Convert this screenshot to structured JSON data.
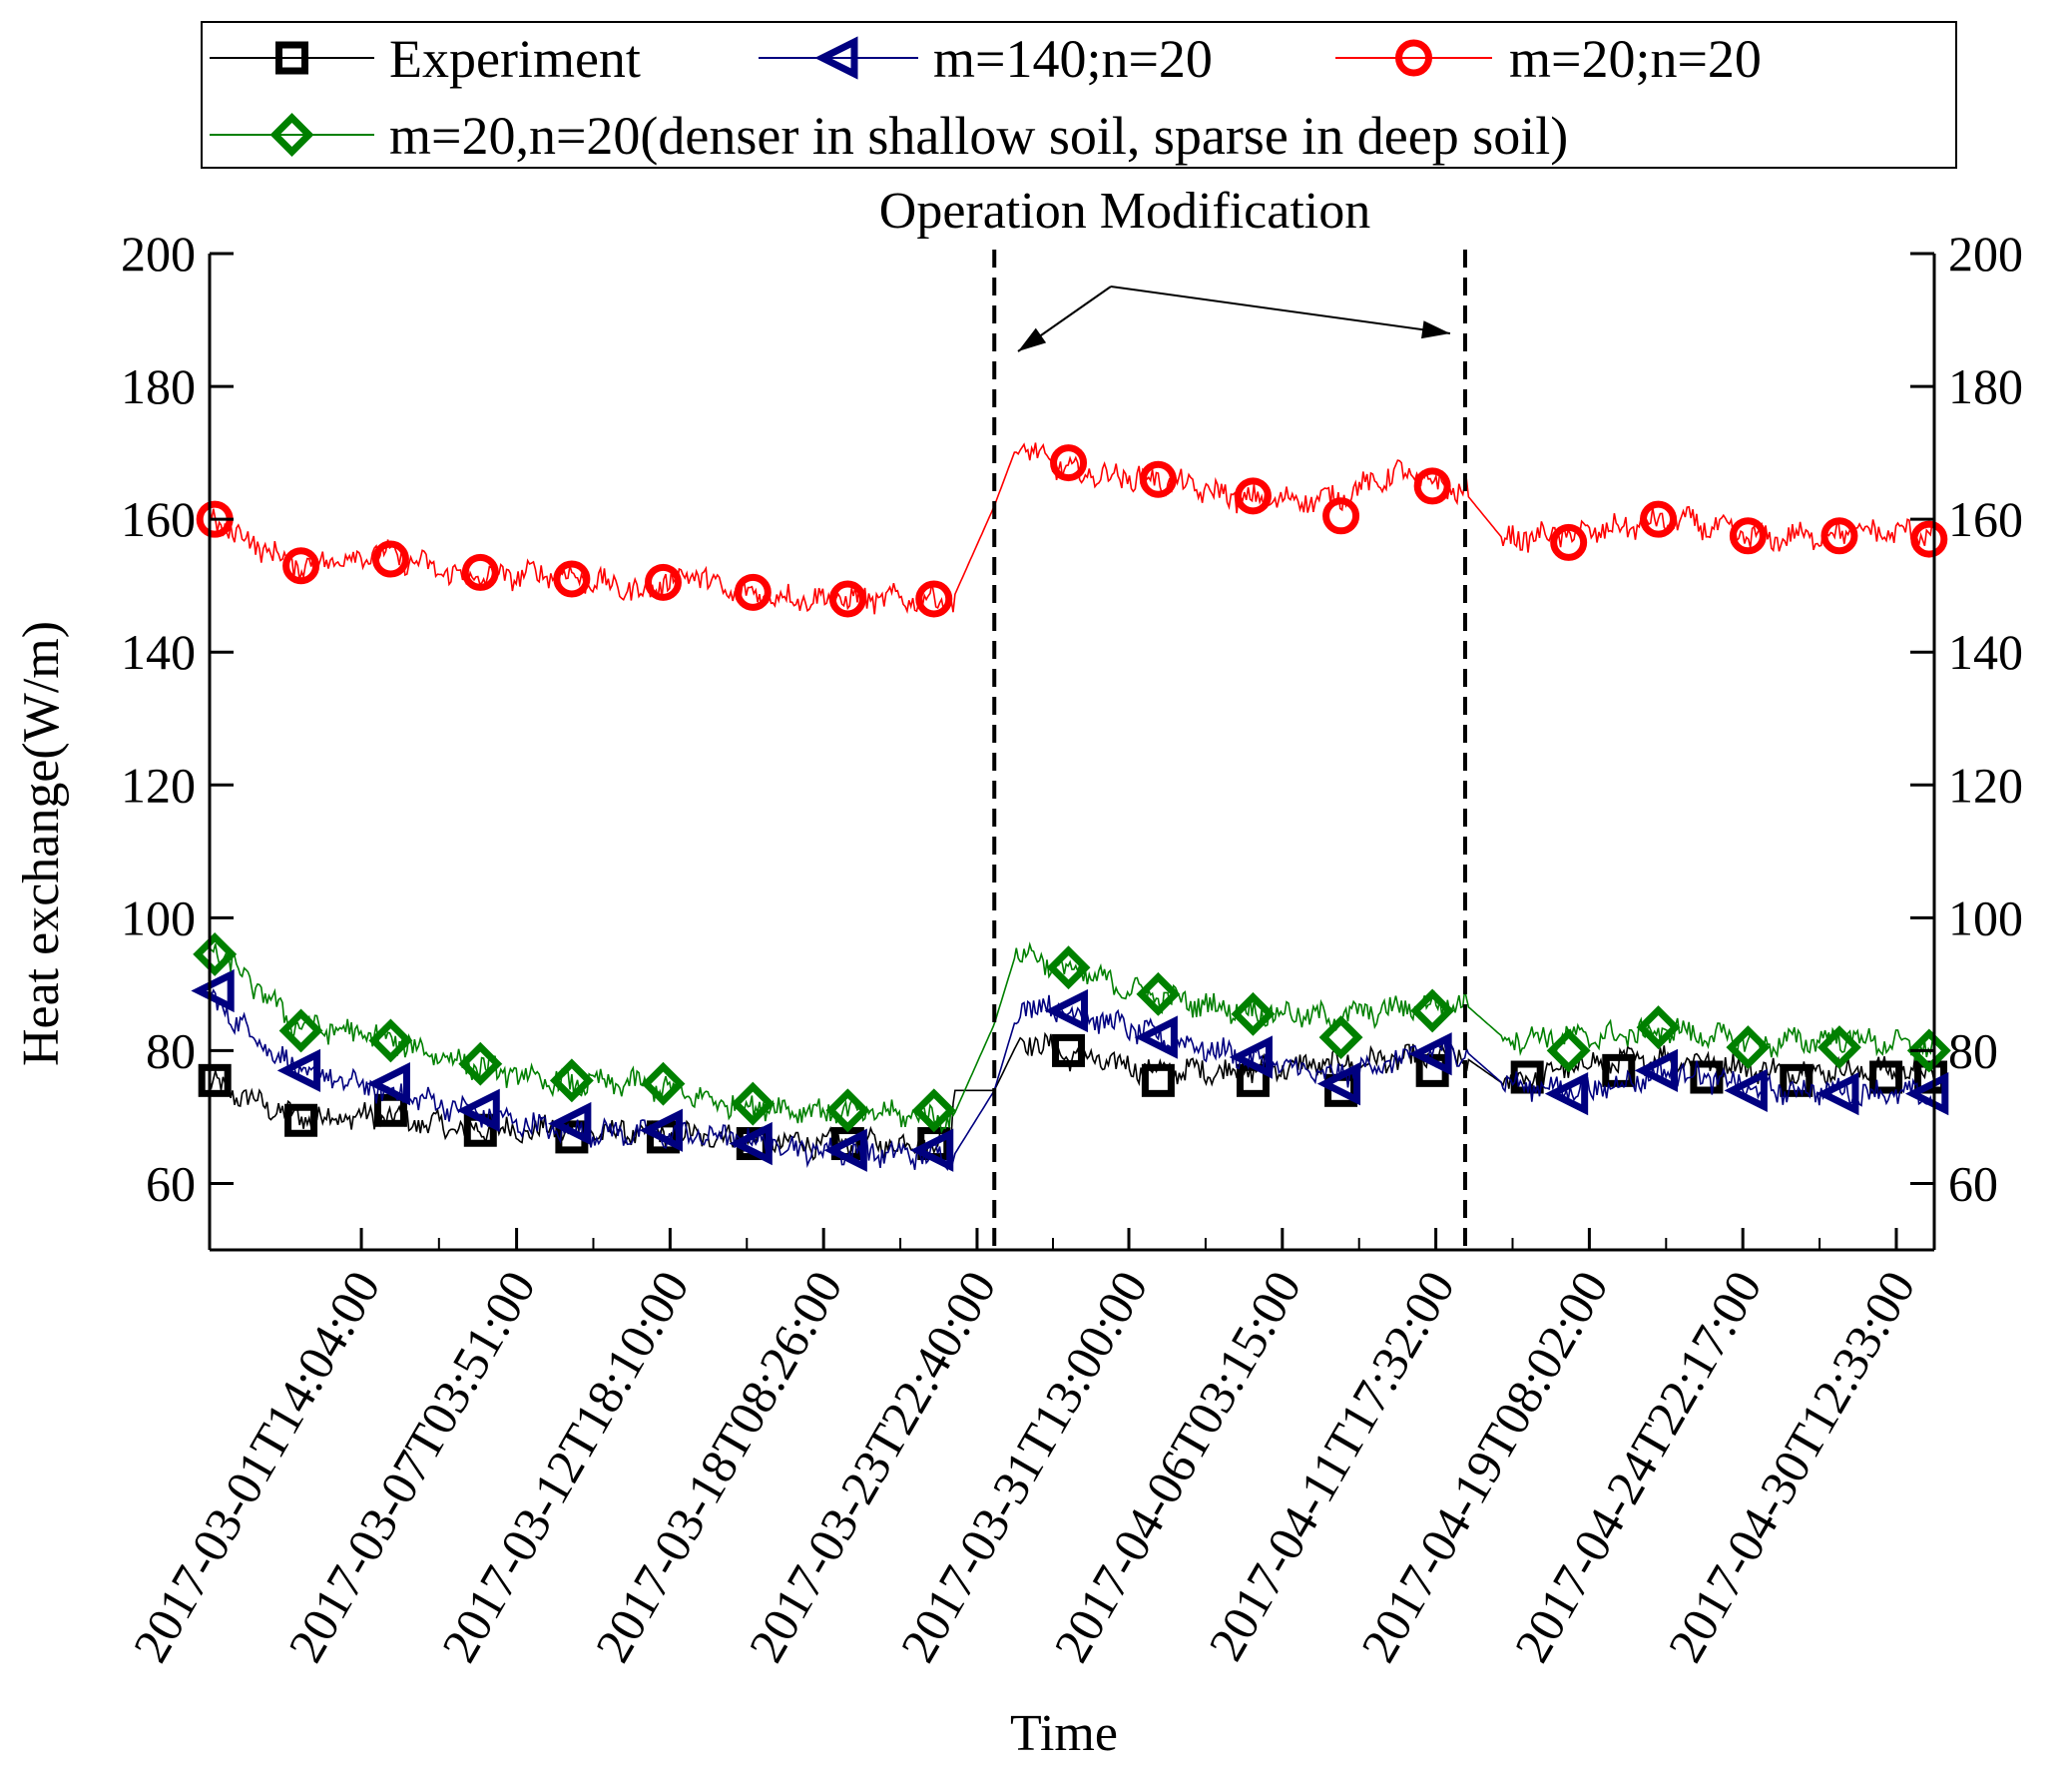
{
  "chart_data": {
    "type": "line",
    "title": "",
    "xlabel": "Time",
    "ylabel": "Heat exchange(W/m)",
    "ylim": [
      50,
      200
    ],
    "yticks": [
      60,
      80,
      100,
      120,
      140,
      160,
      180,
      200
    ],
    "xlim": [
      0,
      1
    ],
    "x_tick_labels": [
      "2017-03-01T14:04:00",
      "2017-03-07T03:51:00",
      "2017-03-12T18:10:00",
      "2017-03-18T08:26:00",
      "2017-03-23T22:40:00",
      "2017-03-31T13:00:00",
      "2017-04-06T03:15:00",
      "2017-04-11T17:32:00",
      "2017-04-19T08:02:00",
      "2017-04-24T22:17:00",
      "2017-04-30T12:33:00"
    ],
    "x_tick_positions": [
      0.088,
      0.178,
      0.267,
      0.356,
      0.445,
      0.533,
      0.622,
      0.711,
      0.8,
      0.889,
      0.978
    ],
    "annotation": {
      "text": "Operation Modification",
      "vlines": [
        0.455,
        0.728
      ]
    },
    "legend": {
      "placement": "top",
      "entries": [
        "Experiment",
        "m=140;n=20",
        "m=20;n=20",
        "m=20,n=20(denser in shallow soil, sparse in deep soil)"
      ]
    },
    "series": [
      {
        "name": "Experiment",
        "color": "#000000",
        "marker": "square",
        "knots": [
          [
            0,
            75
          ],
          [
            0.05,
            70
          ],
          [
            0.1,
            70
          ],
          [
            0.15,
            68
          ],
          [
            0.2,
            68
          ],
          [
            0.3,
            67
          ],
          [
            0.35,
            66
          ],
          [
            0.43,
            66
          ],
          [
            0.431,
            74
          ],
          [
            0.455,
            74
          ],
          [
            0.47,
            82
          ],
          [
            0.5,
            79
          ],
          [
            0.55,
            77
          ],
          [
            0.6,
            77
          ],
          [
            0.65,
            78
          ],
          [
            0.71,
            79
          ],
          [
            0.728,
            79
          ],
          [
            0.75,
            75
          ],
          [
            0.8,
            78
          ],
          [
            0.85,
            79
          ],
          [
            0.9,
            77
          ],
          [
            0.95,
            77
          ],
          [
            1.0,
            77
          ]
        ],
        "markers": [
          [
            0.003,
            75.5
          ],
          [
            0.053,
            69.5
          ],
          [
            0.105,
            71
          ],
          [
            0.157,
            68
          ],
          [
            0.21,
            67
          ],
          [
            0.263,
            67
          ],
          [
            0.315,
            66
          ],
          [
            0.37,
            66
          ],
          [
            0.42,
            66
          ],
          [
            0.498,
            80
          ],
          [
            0.55,
            75.5
          ],
          [
            0.605,
            75.5
          ],
          [
            0.656,
            74
          ],
          [
            0.709,
            77
          ],
          [
            0.764,
            76
          ],
          [
            0.817,
            77
          ],
          [
            0.868,
            76
          ],
          [
            0.92,
            75.5
          ],
          [
            0.972,
            76
          ],
          [
            0.998,
            76
          ]
        ]
      },
      {
        "name": "m=140;n=20",
        "color": "#000080",
        "marker": "triangle-left",
        "knots": [
          [
            0,
            88
          ],
          [
            0.05,
            77
          ],
          [
            0.1,
            74
          ],
          [
            0.15,
            71
          ],
          [
            0.2,
            68
          ],
          [
            0.3,
            67
          ],
          [
            0.35,
            65
          ],
          [
            0.431,
            64
          ],
          [
            0.455,
            74
          ],
          [
            0.47,
            87
          ],
          [
            0.5,
            86
          ],
          [
            0.55,
            82
          ],
          [
            0.6,
            79
          ],
          [
            0.65,
            76
          ],
          [
            0.71,
            80
          ],
          [
            0.728,
            80
          ],
          [
            0.75,
            75
          ],
          [
            0.8,
            74
          ],
          [
            0.85,
            77
          ],
          [
            0.9,
            74
          ],
          [
            0.95,
            74
          ],
          [
            1.0,
            73
          ]
        ],
        "markers": [
          [
            0.003,
            89
          ],
          [
            0.053,
            77
          ],
          [
            0.105,
            75
          ],
          [
            0.157,
            71
          ],
          [
            0.21,
            69
          ],
          [
            0.263,
            68
          ],
          [
            0.315,
            66
          ],
          [
            0.37,
            65
          ],
          [
            0.42,
            65
          ],
          [
            0.498,
            86
          ],
          [
            0.55,
            82
          ],
          [
            0.605,
            79
          ],
          [
            0.656,
            75
          ],
          [
            0.709,
            79.5
          ],
          [
            0.788,
            73.5
          ],
          [
            0.84,
            77
          ],
          [
            0.892,
            74
          ],
          [
            0.945,
            73.5
          ],
          [
            0.997,
            73.5
          ]
        ]
      },
      {
        "name": "m=20;n=20",
        "color": "#ff0000",
        "marker": "circle",
        "knots": [
          [
            0,
            160
          ],
          [
            0.05,
            153
          ],
          [
            0.1,
            155
          ],
          [
            0.15,
            151
          ],
          [
            0.2,
            152
          ],
          [
            0.25,
            149
          ],
          [
            0.28,
            152
          ],
          [
            0.3,
            149
          ],
          [
            0.35,
            148
          ],
          [
            0.431,
            148
          ],
          [
            0.455,
            162
          ],
          [
            0.468,
            171
          ],
          [
            0.5,
            167
          ],
          [
            0.55,
            166
          ],
          [
            0.6,
            163
          ],
          [
            0.65,
            163
          ],
          [
            0.69,
            167
          ],
          [
            0.728,
            164
          ],
          [
            0.75,
            157
          ],
          [
            0.8,
            158
          ],
          [
            0.85,
            160
          ],
          [
            0.9,
            157
          ],
          [
            0.95,
            158
          ],
          [
            1.0,
            158
          ]
        ],
        "markers": [
          [
            0.003,
            160
          ],
          [
            0.053,
            153
          ],
          [
            0.105,
            154
          ],
          [
            0.157,
            152
          ],
          [
            0.21,
            151
          ],
          [
            0.263,
            150.5
          ],
          [
            0.315,
            149
          ],
          [
            0.37,
            148
          ],
          [
            0.42,
            148
          ],
          [
            0.498,
            168.5
          ],
          [
            0.55,
            166
          ],
          [
            0.605,
            163.5
          ],
          [
            0.656,
            160.5
          ],
          [
            0.709,
            165
          ],
          [
            0.788,
            156.5
          ],
          [
            0.84,
            160
          ],
          [
            0.892,
            157.5
          ],
          [
            0.945,
            157.5
          ],
          [
            0.997,
            157
          ]
        ]
      },
      {
        "name": "m=20,n=20(denser in shallow soil, sparse in deep soil)",
        "color": "#008000",
        "marker": "diamond",
        "knots": [
          [
            0,
            96
          ],
          [
            0.05,
            84
          ],
          [
            0.1,
            82
          ],
          [
            0.15,
            78
          ],
          [
            0.2,
            75
          ],
          [
            0.25,
            75
          ],
          [
            0.3,
            72
          ],
          [
            0.35,
            71
          ],
          [
            0.431,
            70
          ],
          [
            0.455,
            84
          ],
          [
            0.468,
            95
          ],
          [
            0.5,
            92
          ],
          [
            0.55,
            88
          ],
          [
            0.6,
            86
          ],
          [
            0.65,
            85
          ],
          [
            0.71,
            87
          ],
          [
            0.728,
            87
          ],
          [
            0.75,
            82
          ],
          [
            0.8,
            82
          ],
          [
            0.85,
            83
          ],
          [
            0.9,
            81
          ],
          [
            0.95,
            82
          ],
          [
            1.0,
            80
          ]
        ],
        "markers": [
          [
            0.003,
            94.5
          ],
          [
            0.053,
            83
          ],
          [
            0.105,
            81.5
          ],
          [
            0.157,
            78
          ],
          [
            0.21,
            75.5
          ],
          [
            0.263,
            75
          ],
          [
            0.315,
            72
          ],
          [
            0.37,
            71
          ],
          [
            0.42,
            71
          ],
          [
            0.498,
            92.5
          ],
          [
            0.55,
            88.5
          ],
          [
            0.605,
            85.5
          ],
          [
            0.656,
            82
          ],
          [
            0.709,
            86
          ],
          [
            0.788,
            80
          ],
          [
            0.84,
            83.5
          ],
          [
            0.892,
            80.5
          ],
          [
            0.945,
            80.5
          ],
          [
            0.997,
            80
          ]
        ]
      }
    ]
  }
}
